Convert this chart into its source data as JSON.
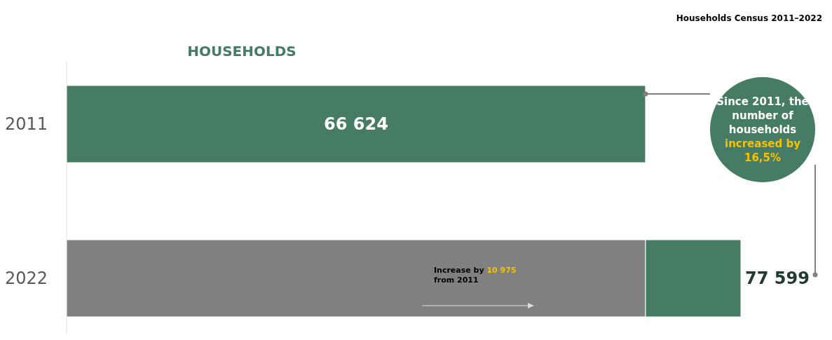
{
  "chart_data": {
    "type": "bar",
    "orientation": "horizontal",
    "stacked": true,
    "title": "HOUSEHOLDS",
    "subtitle": "Households Census 2011–2022",
    "categories": [
      "2011",
      "2022"
    ],
    "series": [
      {
        "colors": [
          "#467c65",
          "#808080"
        ],
        "values": [
          66624,
          66624
        ],
        "value_labels": [
          "66 624",
          null
        ]
      },
      {
        "color": "#467c65",
        "values": [
          null,
          10975
        ]
      }
    ],
    "totals": [
      null,
      "77 599"
    ],
    "tick_labels": "y",
    "annotations": [
      "Increase by 10 975 from 2011",
      "Since 2011, the number of households",
      "increased by 16,5%"
    ]
  }
}
